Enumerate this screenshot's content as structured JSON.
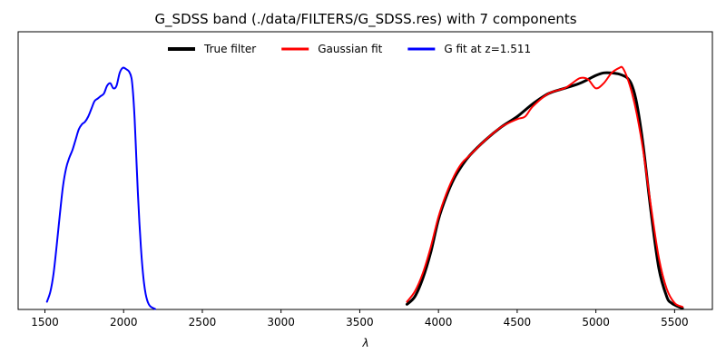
{
  "chart_data": {
    "type": "line",
    "title": "G_SDSS band (./data/FILTERS/G_SDSS.res) with 7 components",
    "xlabel": "λ",
    "ylabel": "",
    "xlim": [
      1330,
      5740
    ],
    "ylim": [
      0,
      1.08
    ],
    "xticks": [
      1500,
      2000,
      2500,
      3000,
      3500,
      4000,
      4500,
      5000,
      5500
    ],
    "yticks_visible": false,
    "grid": false,
    "legend": {
      "placement": "top-center",
      "orientation": "horizontal"
    },
    "series": [
      {
        "name": "True filter",
        "color": "#000000",
        "line_width": 3,
        "x": [
          3800,
          3850,
          3900,
          3950,
          4000,
          4050,
          4100,
          4150,
          4200,
          4300,
          4400,
          4500,
          4600,
          4700,
          4800,
          4900,
          5000,
          5050,
          5100,
          5150,
          5200,
          5230,
          5260,
          5300,
          5350,
          5400,
          5450,
          5480,
          5520,
          5550
        ],
        "y": [
          0.02,
          0.05,
          0.12,
          0.22,
          0.35,
          0.44,
          0.51,
          0.56,
          0.6,
          0.66,
          0.71,
          0.75,
          0.8,
          0.84,
          0.86,
          0.88,
          0.91,
          0.92,
          0.92,
          0.915,
          0.9,
          0.87,
          0.8,
          0.64,
          0.38,
          0.16,
          0.05,
          0.025,
          0.012,
          0.005
        ]
      },
      {
        "name": "Gaussian fit",
        "color": "#ff0000",
        "line_width": 2,
        "x": [
          3800,
          3850,
          3900,
          3950,
          4000,
          4050,
          4100,
          4150,
          4200,
          4300,
          4400,
          4500,
          4550,
          4600,
          4700,
          4800,
          4850,
          4900,
          4950,
          5000,
          5050,
          5100,
          5150,
          5170,
          5200,
          5230,
          5260,
          5300,
          5350,
          5400,
          5450,
          5500,
          5550
        ],
        "y": [
          0.03,
          0.07,
          0.14,
          0.24,
          0.36,
          0.45,
          0.52,
          0.57,
          0.6,
          0.66,
          0.71,
          0.74,
          0.75,
          0.79,
          0.84,
          0.86,
          0.88,
          0.9,
          0.895,
          0.86,
          0.88,
          0.92,
          0.94,
          0.94,
          0.9,
          0.84,
          0.76,
          0.62,
          0.4,
          0.2,
          0.08,
          0.025,
          0.01
        ]
      },
      {
        "name": "G fit at z=1.511",
        "color": "#0000ff",
        "line_width": 2,
        "x": [
          1513,
          1535,
          1555,
          1575,
          1595,
          1615,
          1635,
          1655,
          1675,
          1695,
          1715,
          1735,
          1755,
          1775,
          1795,
          1815,
          1835,
          1855,
          1875,
          1895,
          1915,
          1935,
          1955,
          1975,
          1995,
          2015,
          2035,
          2050,
          2060,
          2070,
          2080,
          2090,
          2100,
          2110,
          2120,
          2130,
          2140,
          2150,
          2160,
          2170,
          2185,
          2200
        ],
        "y": [
          0.03,
          0.07,
          0.14,
          0.25,
          0.37,
          0.48,
          0.55,
          0.59,
          0.62,
          0.66,
          0.7,
          0.72,
          0.73,
          0.75,
          0.78,
          0.81,
          0.82,
          0.83,
          0.84,
          0.87,
          0.88,
          0.86,
          0.87,
          0.92,
          0.94,
          0.935,
          0.925,
          0.9,
          0.84,
          0.74,
          0.6,
          0.46,
          0.34,
          0.24,
          0.16,
          0.1,
          0.06,
          0.035,
          0.02,
          0.012,
          0.006,
          0.002
        ]
      }
    ]
  }
}
